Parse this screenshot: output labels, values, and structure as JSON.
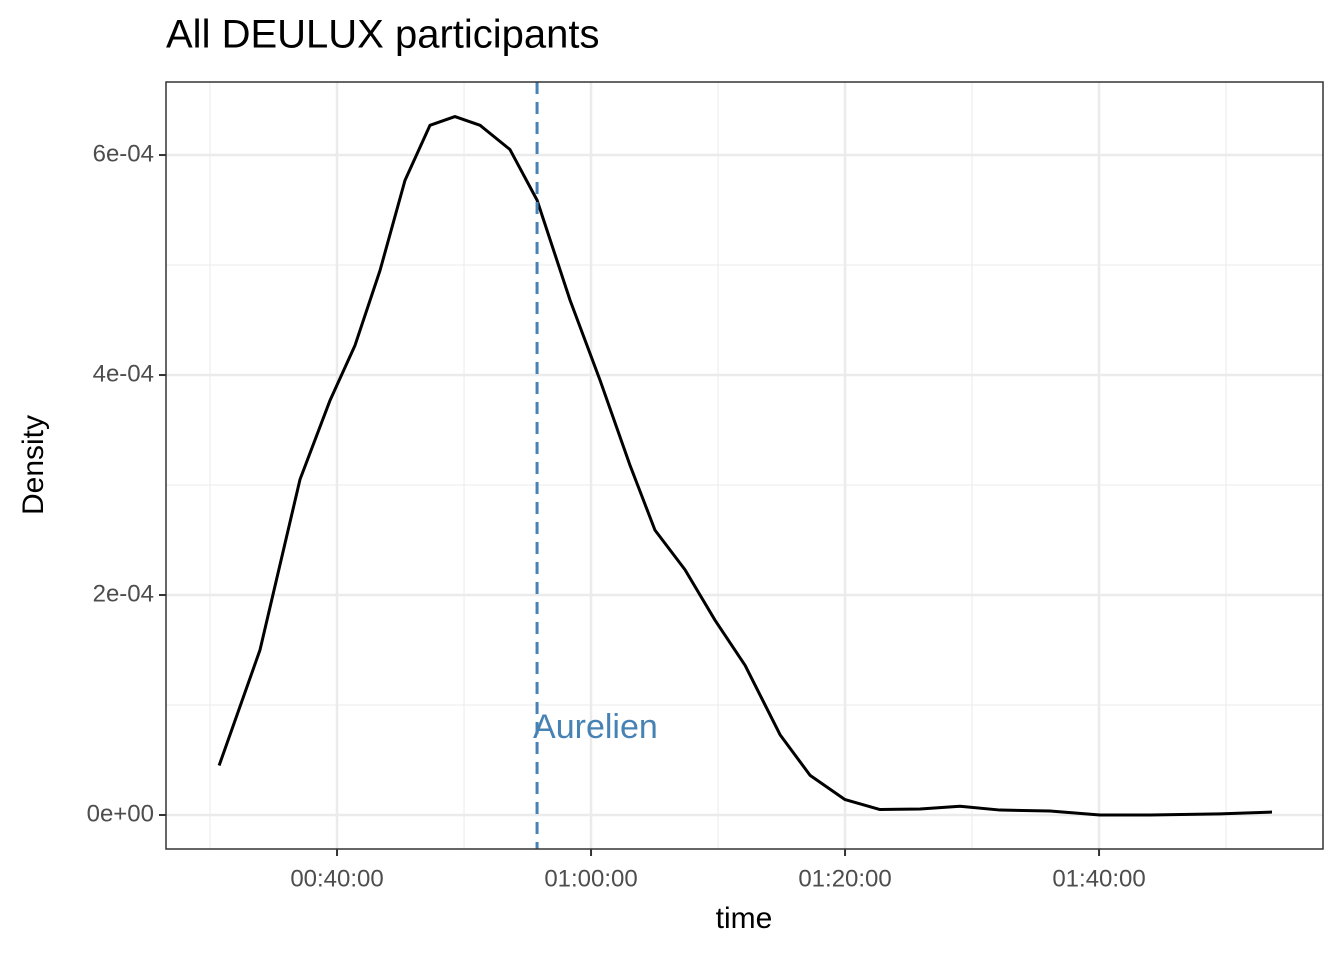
{
  "chart_data": {
    "type": "line",
    "title": "All DEULUX participants",
    "x_label": "time",
    "y_label": "Density",
    "x": [
      1843,
      2036,
      2225,
      2367,
      2485,
      2603,
      2721,
      2839,
      2957,
      3076,
      3217,
      3345,
      3501,
      3643,
      3784,
      3902,
      4044,
      4186,
      4328,
      4493,
      4635,
      4800,
      4965,
      5154,
      5343,
      5532,
      5768,
      6004,
      6241,
      6572,
      6817
    ],
    "values": [
      4.5e-05,
      0.00015,
      0.000305,
      0.000377,
      0.000427,
      0.000495,
      0.000577,
      0.000627,
      0.000635,
      0.000627,
      0.000605,
      0.000559,
      0.000468,
      0.000395,
      0.000318,
      0.000259,
      0.000223,
      0.000177,
      0.000136,
      7.3e-05,
      3.6e-05,
      1.4e-05,
      5e-06,
      5.5e-06,
      8e-06,
      4.5e-06,
      3.6e-06,
      0,
      0,
      1e-06,
      2.7e-06
    ],
    "color": "#000000",
    "vline": {
      "x": 3345,
      "label": "Aurelien",
      "color": "#4682b4"
    },
    "xlim": [
      1592,
      7058
    ],
    "ylim": [
      -3.09e-05,
      0.0006664
    ],
    "xticks": [
      {
        "value": 2400,
        "label": "00:40:00"
      },
      {
        "value": 3600,
        "label": "01:00:00"
      },
      {
        "value": 4800,
        "label": "01:20:00"
      },
      {
        "value": 6000,
        "label": "01:40:00"
      }
    ],
    "yticks": [
      {
        "value": 0,
        "label": "0e+00"
      },
      {
        "value": 0.0002,
        "label": "2e-04"
      },
      {
        "value": 0.0004,
        "label": "4e-04"
      },
      {
        "value": 0.0006,
        "label": "6e-04"
      }
    ],
    "grid": true
  }
}
